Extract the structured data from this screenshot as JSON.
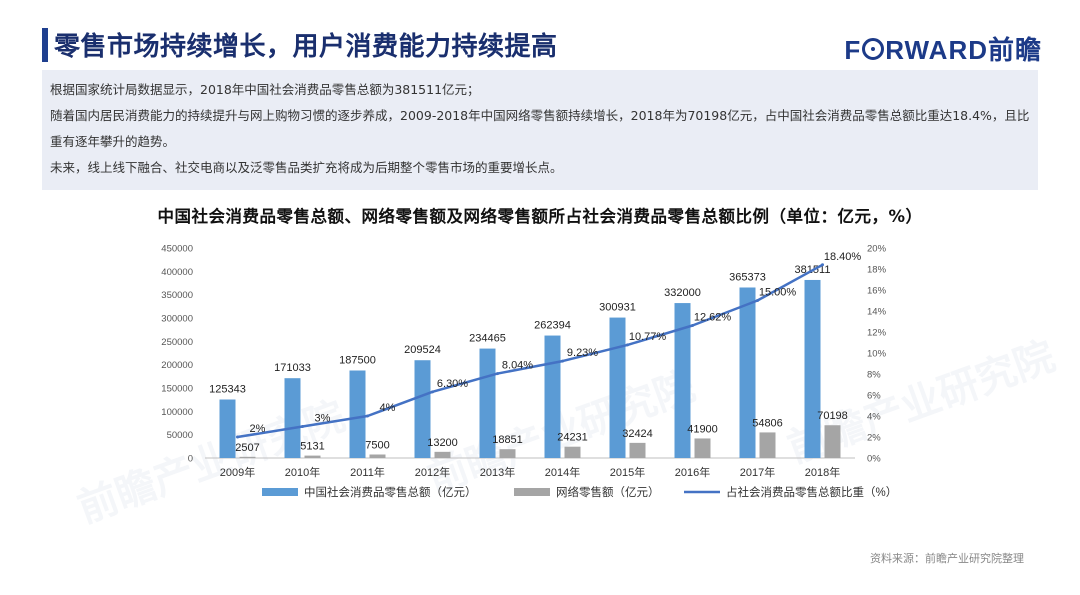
{
  "header": {
    "title": "零售市场持续增长，用户消费能力持续提高",
    "logo_text": "FORWARD前瞻"
  },
  "info": {
    "line1": "根据国家统计局数据显示，2018年中国社会消费品零售总额为381511亿元；",
    "line2": "随着国内居民消费能力的持续提升与网上购物习惯的逐步养成，2009-2018年中国网络零售额持续增长，2018年为70198亿元，占中国社会消费品零售总额比重达18.4%，且比重有逐年攀升的趋势。",
    "line3": "未来，线上线下融合、社交电商以及泛零售品类扩充将成为后期整个零售市场的重要增长点。"
  },
  "chart_data": {
    "type": "bar",
    "title": "中国社会消费品零售总额、网络零售额及网络零售额所占社会消费品零售总额比例（单位：亿元，%）",
    "categories": [
      "2009年",
      "2010年",
      "2011年",
      "2012年",
      "2013年",
      "2014年",
      "2015年",
      "2016年",
      "2017年",
      "2018年"
    ],
    "series": [
      {
        "name": "中国社会消费品零售总额（亿元）",
        "kind": "bar",
        "axis": "left",
        "color": "#5b9bd5",
        "values": [
          125343,
          171033,
          187500,
          209524,
          234465,
          262394,
          300931,
          332000,
          365373,
          381511
        ]
      },
      {
        "name": "网络零售额（亿元）",
        "kind": "bar",
        "axis": "left",
        "color": "#a5a5a5",
        "values": [
          2507,
          5131,
          7500,
          13200,
          18851,
          24231,
          32424,
          41900,
          54806,
          70198
        ]
      },
      {
        "name": "占社会消费品零售总额比重（%）",
        "kind": "line",
        "axis": "right",
        "color": "#4472c4",
        "values": [
          2,
          3,
          4,
          6.3,
          8.04,
          9.23,
          10.77,
          12.62,
          15.0,
          18.4
        ],
        "labels": [
          "2%",
          "3%",
          "4%",
          "6.30%",
          "8.04%",
          "9.23%",
          "10.77%",
          "12.62%",
          "15.00%",
          "18.40%"
        ]
      }
    ],
    "y_left": {
      "min": 0,
      "max": 450000,
      "step": 50000,
      "ticks": [
        "0",
        "50000",
        "100000",
        "150000",
        "200000",
        "250000",
        "300000",
        "350000",
        "400000",
        "450000"
      ]
    },
    "y_right": {
      "min": 0,
      "max": 20,
      "step": 2,
      "ticks": [
        "0%",
        "2%",
        "4%",
        "6%",
        "8%",
        "10%",
        "12%",
        "14%",
        "16%",
        "18%",
        "20%"
      ]
    },
    "legend_position": "bottom",
    "grid": false
  },
  "source": "资料来源：前瞻产业研究院整理"
}
